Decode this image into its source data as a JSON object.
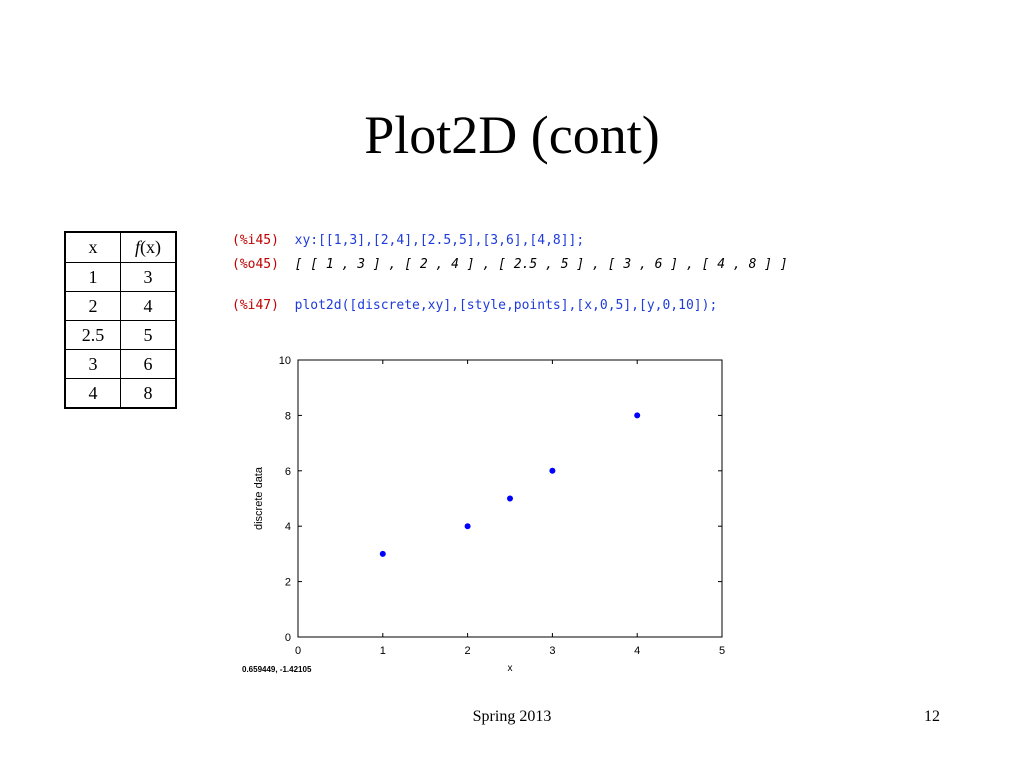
{
  "slide": {
    "title": "Plot2D (cont)",
    "footer_center": "Spring 2013",
    "page_number": "12"
  },
  "table": {
    "headers": {
      "x": "x",
      "fx_f": "f",
      "fx_rest": "(x)"
    },
    "rows": [
      {
        "x": "1",
        "fx": "3"
      },
      {
        "x": "2",
        "fx": "4"
      },
      {
        "x": "2.5",
        "fx": "5"
      },
      {
        "x": "3",
        "fx": "6"
      },
      {
        "x": "4",
        "fx": "8"
      }
    ]
  },
  "console": {
    "lines": [
      {
        "prompt": "(%i45)",
        "text": "xy:[[1,3],[2,4],[2.5,5],[3,6],[4,8]];",
        "kind": "input"
      },
      {
        "prompt": "(%o45)",
        "text": "[ [ 1 , 3 ] , [ 2 , 4 ] , [ 2.5 , 5 ] , [ 3 , 6 ] , [ 4 , 8 ] ]",
        "kind": "output"
      },
      {
        "prompt": "(%i47)",
        "text": "plot2d([discrete,xy],[style,points],[x,0,5],[y,0,10]);",
        "kind": "input"
      }
    ]
  },
  "chart_data": {
    "type": "scatter",
    "title": "",
    "xlabel": "x",
    "ylabel": "discrete data",
    "xlim": [
      0,
      5
    ],
    "ylim": [
      0,
      10
    ],
    "xticks": [
      "0",
      "1",
      "2",
      "3",
      "4",
      "5"
    ],
    "yticks": [
      "0",
      "2",
      "4",
      "6",
      "8",
      "10"
    ],
    "grid": false,
    "legend": "none",
    "coord_readout": "0.659449, -1.42105",
    "marker_color": "#0000ff",
    "series": [
      {
        "x": [
          1,
          2,
          2.5,
          3,
          4
        ],
        "y": [
          3,
          4,
          5,
          6,
          8
        ]
      }
    ]
  }
}
